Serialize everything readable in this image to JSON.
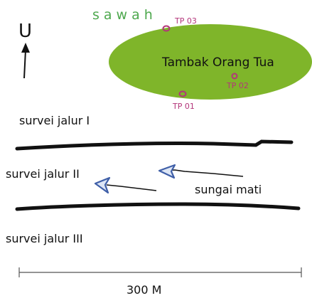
{
  "map": {
    "field_label": "sawah",
    "pond_label": "Tambak Orang Tua",
    "north_label": "U",
    "test_pits": [
      {
        "label": "TP 03"
      },
      {
        "label": "TP 02"
      },
      {
        "label": "TP 01"
      }
    ],
    "survey_lines": [
      {
        "label": "survei jalur I"
      },
      {
        "label": "survei jalur II"
      },
      {
        "label": "survei jalur III"
      }
    ],
    "river_label": "sungai mati",
    "scale_label": "300 M",
    "colors": {
      "pond_fill": "#7fb52a",
      "field_text": "#4ea84e",
      "test_pit": "#b3367a",
      "flow_arrow": "#3f5fa8",
      "line": "#000000"
    }
  }
}
